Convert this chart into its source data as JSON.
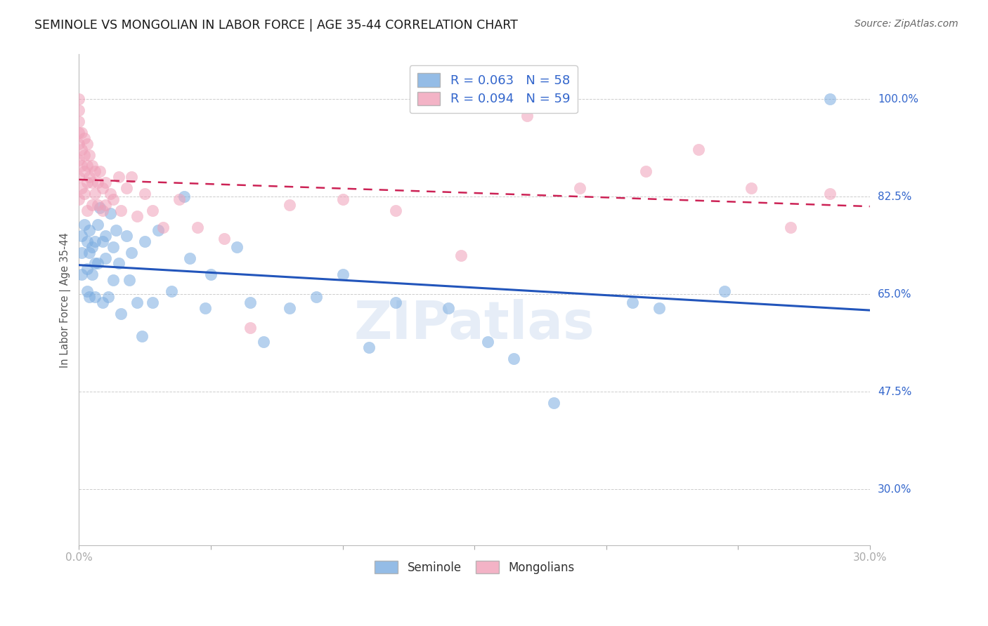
{
  "title": "SEMINOLE VS MONGOLIAN IN LABOR FORCE | AGE 35-44 CORRELATION CHART",
  "source": "Source: ZipAtlas.com",
  "ylabel": "In Labor Force | Age 35-44",
  "xlim": [
    0.0,
    0.3
  ],
  "ylim": [
    0.2,
    1.08
  ],
  "ytick_vals": [
    0.3,
    0.475,
    0.65,
    0.825,
    1.0
  ],
  "ytick_labels": [
    "30.0%",
    "47.5%",
    "65.0%",
    "82.5%",
    "100.0%"
  ],
  "xtick_vals": [
    0.0,
    0.05,
    0.1,
    0.15,
    0.2,
    0.25,
    0.3
  ],
  "xtick_labels": [
    "0.0%",
    "",
    "",
    "",
    "",
    "",
    "30.0%"
  ],
  "grid_color": "#cccccc",
  "bg_color": "#ffffff",
  "blue_scatter_color": "#7aace0",
  "pink_scatter_color": "#f0a0b8",
  "blue_line_color": "#2255bb",
  "pink_line_color": "#cc2255",
  "text_color_blue": "#3366cc",
  "legend_R_blue": "R = 0.063",
  "legend_N_blue": "N = 58",
  "legend_R_pink": "R = 0.094",
  "legend_N_pink": "N = 59",
  "seminole_label": "Seminole",
  "mongolians_label": "Mongolians",
  "watermark": "ZIPatlas",
  "seminole_x": [
    0.001,
    0.001,
    0.001,
    0.002,
    0.003,
    0.003,
    0.003,
    0.004,
    0.004,
    0.004,
    0.005,
    0.005,
    0.006,
    0.006,
    0.006,
    0.007,
    0.007,
    0.008,
    0.009,
    0.009,
    0.01,
    0.01,
    0.011,
    0.012,
    0.013,
    0.013,
    0.014,
    0.015,
    0.016,
    0.018,
    0.019,
    0.02,
    0.022,
    0.024,
    0.025,
    0.028,
    0.03,
    0.035,
    0.04,
    0.042,
    0.048,
    0.05,
    0.06,
    0.065,
    0.07,
    0.08,
    0.09,
    0.1,
    0.11,
    0.12,
    0.14,
    0.155,
    0.165,
    0.18,
    0.21,
    0.22,
    0.245,
    0.285
  ],
  "seminole_y": [
    0.755,
    0.725,
    0.685,
    0.775,
    0.745,
    0.695,
    0.655,
    0.765,
    0.725,
    0.645,
    0.735,
    0.685,
    0.745,
    0.705,
    0.645,
    0.775,
    0.705,
    0.805,
    0.745,
    0.635,
    0.755,
    0.715,
    0.645,
    0.795,
    0.735,
    0.675,
    0.765,
    0.705,
    0.615,
    0.755,
    0.675,
    0.725,
    0.635,
    0.575,
    0.745,
    0.635,
    0.765,
    0.655,
    0.825,
    0.715,
    0.625,
    0.685,
    0.735,
    0.635,
    0.565,
    0.625,
    0.645,
    0.685,
    0.555,
    0.635,
    0.625,
    0.565,
    0.535,
    0.455,
    0.635,
    0.625,
    0.655,
    1.0
  ],
  "mongolian_x": [
    0.0,
    0.0,
    0.0,
    0.0,
    0.0,
    0.0,
    0.0,
    0.0,
    0.001,
    0.001,
    0.001,
    0.001,
    0.002,
    0.002,
    0.002,
    0.002,
    0.003,
    0.003,
    0.003,
    0.003,
    0.004,
    0.004,
    0.005,
    0.005,
    0.005,
    0.006,
    0.006,
    0.007,
    0.007,
    0.008,
    0.009,
    0.009,
    0.01,
    0.01,
    0.012,
    0.013,
    0.015,
    0.016,
    0.018,
    0.02,
    0.022,
    0.025,
    0.028,
    0.032,
    0.038,
    0.045,
    0.055,
    0.065,
    0.08,
    0.1,
    0.12,
    0.145,
    0.17,
    0.19,
    0.215,
    0.235,
    0.255,
    0.27,
    0.285
  ],
  "mongolian_y": [
    1.0,
    0.98,
    0.96,
    0.94,
    0.92,
    0.89,
    0.86,
    0.82,
    0.94,
    0.91,
    0.88,
    0.84,
    0.93,
    0.9,
    0.87,
    0.83,
    0.92,
    0.88,
    0.85,
    0.8,
    0.9,
    0.86,
    0.88,
    0.85,
    0.81,
    0.87,
    0.83,
    0.85,
    0.81,
    0.87,
    0.84,
    0.8,
    0.85,
    0.81,
    0.83,
    0.82,
    0.86,
    0.8,
    0.84,
    0.86,
    0.79,
    0.83,
    0.8,
    0.77,
    0.82,
    0.77,
    0.75,
    0.59,
    0.81,
    0.82,
    0.8,
    0.72,
    0.97,
    0.84,
    0.87,
    0.91,
    0.84,
    0.77,
    0.83
  ]
}
